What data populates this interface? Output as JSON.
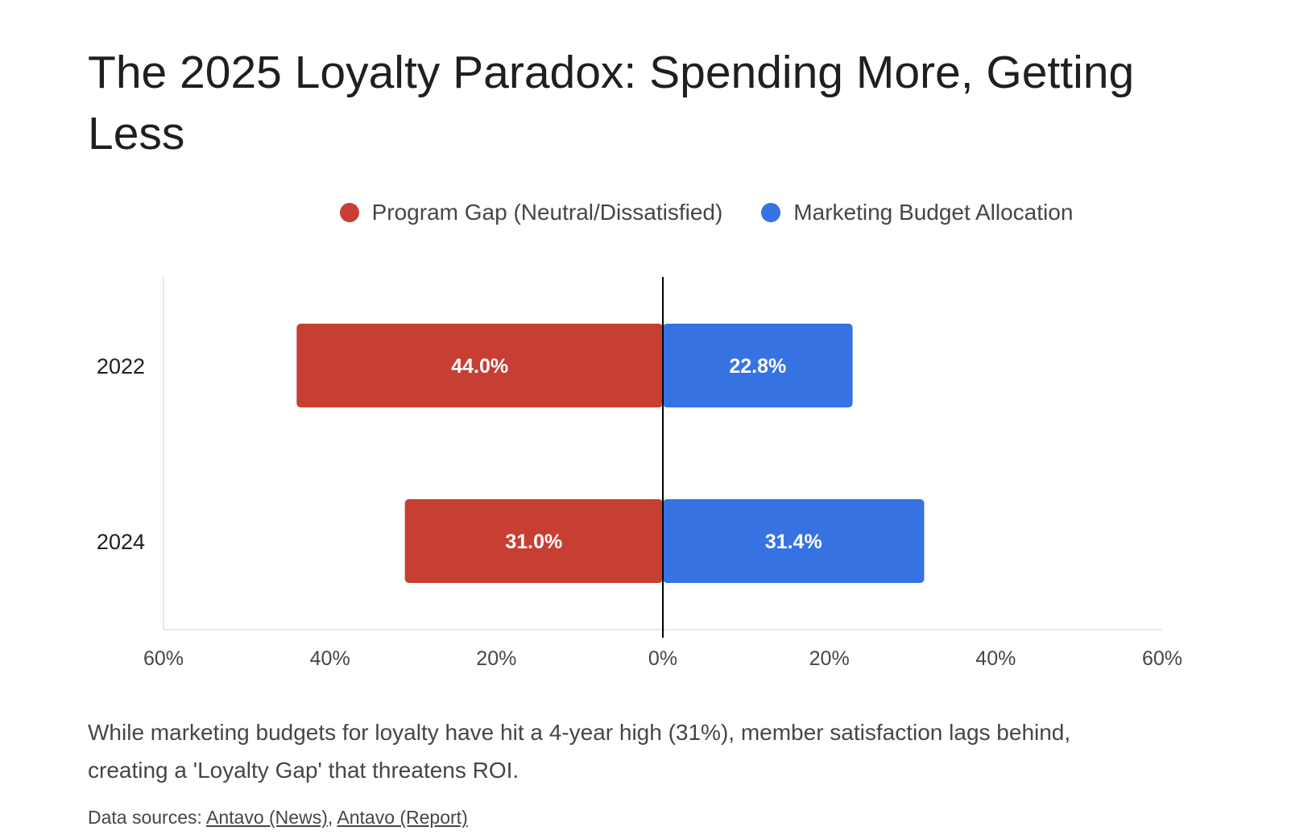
{
  "title": "The 2025 Loyalty Paradox: Spending More, Getting Less",
  "caption": "While marketing budgets for loyalty have hit a 4-year high (31%), member satisfaction lags behind, creating a 'Loyalty Gap' that threatens ROI.",
  "sources": {
    "label": "Data sources:",
    "links": [
      "Antavo (News)",
      "Antavo (Report)"
    ],
    "separator": ","
  },
  "colors": {
    "program_gap": "#c73e33",
    "marketing_budget": "#3672e2",
    "axis": "#000000",
    "grid": "#e0e0e0",
    "bar_label": "#ffffff"
  },
  "chart_data": {
    "type": "bar",
    "orientation": "horizontal",
    "diverging": true,
    "categories": [
      "2022",
      "2024"
    ],
    "series": [
      {
        "name": "Program Gap (Neutral/Dissatisfied)",
        "values": [
          44.0,
          31.0
        ],
        "labels": [
          "44.0%",
          "31.0%"
        ],
        "side": "left"
      },
      {
        "name": "Marketing Budget Allocation",
        "values": [
          22.8,
          31.4
        ],
        "labels": [
          "22.8%",
          "31.4%"
        ],
        "side": "right"
      }
    ],
    "xlim": [
      -60,
      60
    ],
    "xticks": [
      "60%",
      "40%",
      "20%",
      "0%",
      "20%",
      "40%",
      "60%"
    ],
    "legend_position": "top",
    "grid": false
  }
}
